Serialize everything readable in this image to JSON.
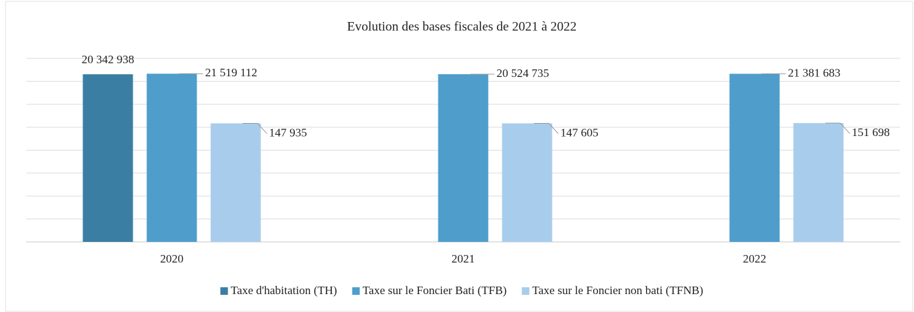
{
  "chart_data": {
    "type": "bar",
    "title": "Evolution des bases fiscales de 2021 à 2022",
    "categories": [
      "2020",
      "2021",
      "2022"
    ],
    "series": [
      {
        "name": "Taxe d'habitation (TH)",
        "color": "#3a7fa3",
        "values": [
          20342938,
          null,
          null
        ],
        "value_labels": [
          "20 342 938",
          null,
          null
        ]
      },
      {
        "name": "Taxe sur le Foncier Bati (TFB)",
        "color": "#4f9dcb",
        "values": [
          21519112,
          20524735,
          21381683
        ],
        "value_labels": [
          "21 519 112",
          "20 524 735",
          "21 381 683"
        ]
      },
      {
        "name": "Taxe sur le Foncier non bati (TFNB)",
        "color": "#a8cdec",
        "values": [
          147935,
          147605,
          151698
        ],
        "value_labels": [
          "147 935",
          "147 605",
          "151 698"
        ]
      }
    ],
    "log_scale": true,
    "ylim": [
      1,
      100000000
    ],
    "yticks": [
      1,
      10,
      100,
      1000,
      10000,
      100000,
      1000000,
      10000000,
      100000000
    ],
    "grid": true,
    "legend": "bottom"
  }
}
